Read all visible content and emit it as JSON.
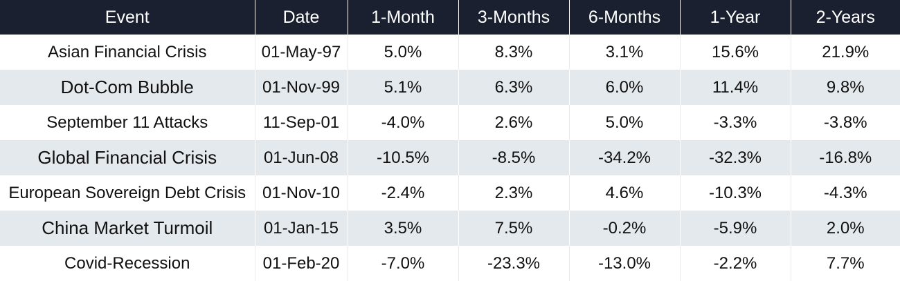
{
  "table": {
    "headers": [
      "Event",
      "Date",
      "1-Month",
      "3-Months",
      "6-Months",
      "1-Year",
      "2-Years"
    ],
    "rows": [
      [
        "Asian Financial Crisis",
        "01-May-97",
        "5.0%",
        "8.3%",
        "3.1%",
        "15.6%",
        "21.9%"
      ],
      [
        "Dot-Com Bubble",
        "01-Nov-99",
        "5.1%",
        "6.3%",
        "6.0%",
        "11.4%",
        "9.8%"
      ],
      [
        "September 11 Attacks",
        "11-Sep-01",
        "-4.0%",
        "2.6%",
        "5.0%",
        "-3.3%",
        "-3.8%"
      ],
      [
        "Global Financial Crisis",
        "01-Jun-08",
        "-10.5%",
        "-8.5%",
        "-34.2%",
        "-32.3%",
        "-16.8%"
      ],
      [
        "European Sovereign Debt Crisis",
        "01-Nov-10",
        "-2.4%",
        "2.3%",
        "4.6%",
        "-10.3%",
        "-4.3%"
      ],
      [
        "China Market Turmoil",
        "01-Jan-15",
        "3.5%",
        "7.5%",
        "-0.2%",
        "-5.9%",
        "2.0%"
      ],
      [
        "Covid-Recession",
        "01-Feb-20",
        "-7.0%",
        "-23.3%",
        "-13.0%",
        "-2.2%",
        "7.7%"
      ]
    ]
  },
  "colors": {
    "header_bg": "#1b2030",
    "header_text": "#ffffff",
    "stripe_bg": "#e3e9ec"
  }
}
